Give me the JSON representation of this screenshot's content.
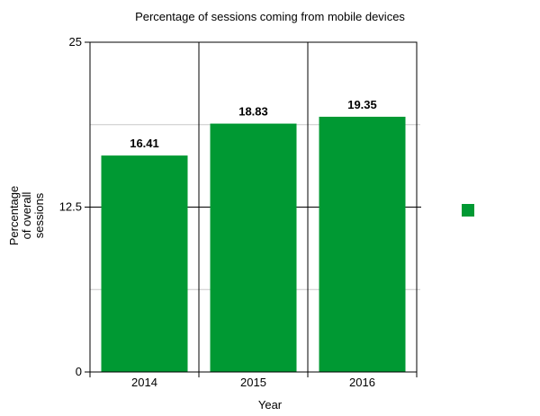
{
  "chart_data": {
    "type": "bar",
    "title": "Percentage of sessions coming from mobile devices",
    "categories": [
      "2014",
      "2015",
      "2016"
    ],
    "values": [
      16.41,
      18.83,
      19.35
    ],
    "value_labels": [
      "16.41",
      "18.83",
      "19.35"
    ],
    "xlabel": "Year",
    "ylabel_lines": [
      "Percentage",
      "of overall",
      "sessions"
    ],
    "ylim": [
      0,
      25
    ],
    "yticks": [
      "0",
      "12.5",
      "25"
    ],
    "grid": true,
    "legend": "right",
    "bar_color": "#009933"
  }
}
